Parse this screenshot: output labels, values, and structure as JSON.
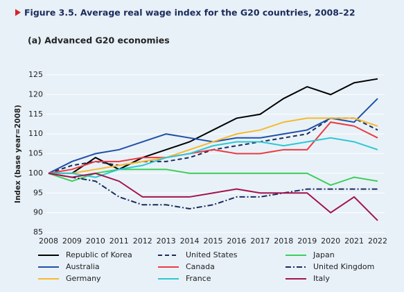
{
  "chart_data": {
    "type": "line",
    "title": "Figure 3.5.  Average real wage index for the G20 countries, 2008–22",
    "subtitle": "(a) Advanced G20 economies",
    "y_label": "Index (base year=2008)",
    "x": [
      2008,
      2009,
      2010,
      2011,
      2012,
      2013,
      2014,
      2015,
      2016,
      2017,
      2018,
      2019,
      2020,
      2021,
      2022
    ],
    "xlim": [
      2008,
      2022
    ],
    "xticks": [
      2008,
      2009,
      2010,
      2011,
      2012,
      2013,
      2014,
      2015,
      2016,
      2017,
      2018,
      2019,
      2020,
      2021,
      2022
    ],
    "ylim": [
      85,
      125
    ],
    "yticks": [
      85,
      90,
      95,
      100,
      105,
      110,
      115,
      120,
      125
    ],
    "grid": true,
    "series": [
      {
        "name": "Republic of Korea",
        "color": "#000000",
        "dash": "solid",
        "values": [
          100,
          100,
          104,
          101,
          104,
          106,
          108,
          111,
          114,
          115,
          119,
          122,
          120,
          123,
          124
        ]
      },
      {
        "name": "United States",
        "color": "#1a2a5a",
        "dash": "dashed",
        "values": [
          100,
          102,
          103,
          102,
          103,
          103,
          104,
          106,
          107,
          108,
          109,
          110,
          114,
          114,
          111
        ]
      },
      {
        "name": "Japan",
        "color": "#3ccf5a",
        "dash": "solid",
        "values": [
          100,
          98,
          100,
          101,
          101,
          101,
          100,
          100,
          100,
          100,
          100,
          100,
          97,
          99,
          98
        ]
      },
      {
        "name": "Australia",
        "color": "#1f4fa8",
        "dash": "solid",
        "values": [
          100,
          103,
          105,
          106,
          108,
          110,
          109,
          108,
          109,
          109,
          110,
          111,
          114,
          113,
          119
        ]
      },
      {
        "name": "Canada",
        "color": "#ec3a40",
        "dash": "solid",
        "values": [
          100,
          101,
          103,
          103,
          104,
          104,
          105,
          106,
          105,
          105,
          106,
          106,
          113,
          112,
          109
        ]
      },
      {
        "name": "United Kingdom",
        "color": "#1a2a5a",
        "dash": "dashdot",
        "values": [
          100,
          99,
          98,
          94,
          92,
          92,
          91,
          92,
          94,
          94,
          95,
          96,
          96,
          96,
          96
        ]
      },
      {
        "name": "Germany",
        "color": "#f6b92c",
        "dash": "solid",
        "values": [
          100,
          100,
          101,
          102,
          103,
          104,
          106,
          108,
          110,
          111,
          113,
          114,
          114,
          114,
          112
        ]
      },
      {
        "name": "France",
        "color": "#2ec6d2",
        "dash": "solid",
        "values": [
          100,
          100,
          99,
          101,
          102,
          104,
          105,
          107,
          108,
          108,
          107,
          108,
          109,
          108,
          106
        ]
      },
      {
        "name": "Italy",
        "color": "#a3124c",
        "dash": "solid",
        "values": [
          100,
          99,
          100,
          98,
          94,
          94,
          94,
          95,
          96,
          95,
          95,
          95,
          90,
          94,
          88
        ]
      }
    ]
  }
}
